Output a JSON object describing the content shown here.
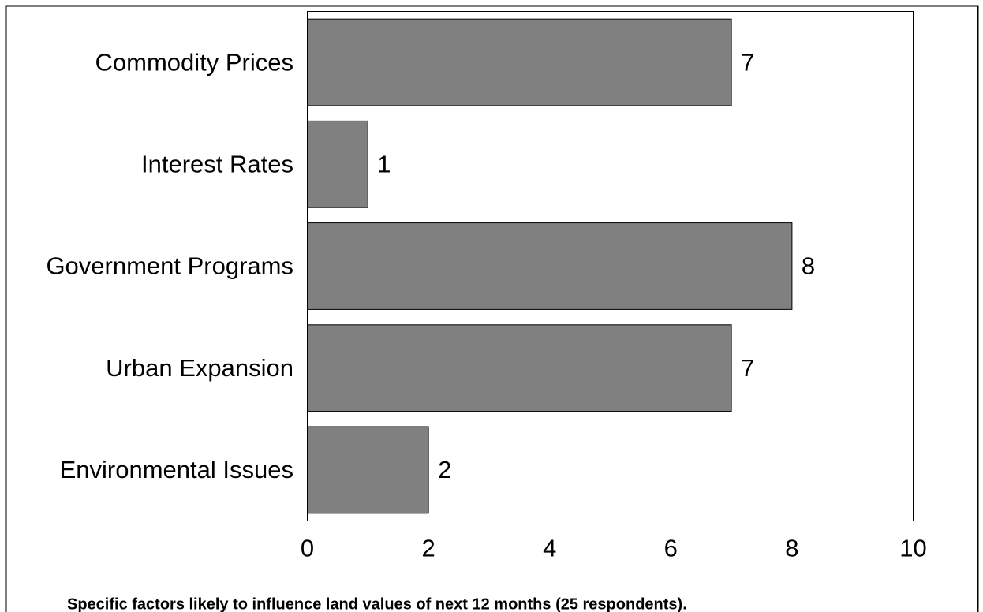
{
  "chart_data": {
    "type": "bar",
    "orientation": "horizontal",
    "caption": "Specific factors likely to influence land values of next 12 months (25 respondents).",
    "categories": [
      "Commodity Prices",
      "Interest Rates",
      "Government Programs",
      "Urban Expansion",
      "Environmental Issues"
    ],
    "values": [
      7,
      1,
      8,
      7,
      2
    ],
    "color": "#808080",
    "xlim": [
      0,
      10
    ],
    "xticks": [
      0,
      2,
      4,
      6,
      8,
      10
    ],
    "grid": false
  }
}
